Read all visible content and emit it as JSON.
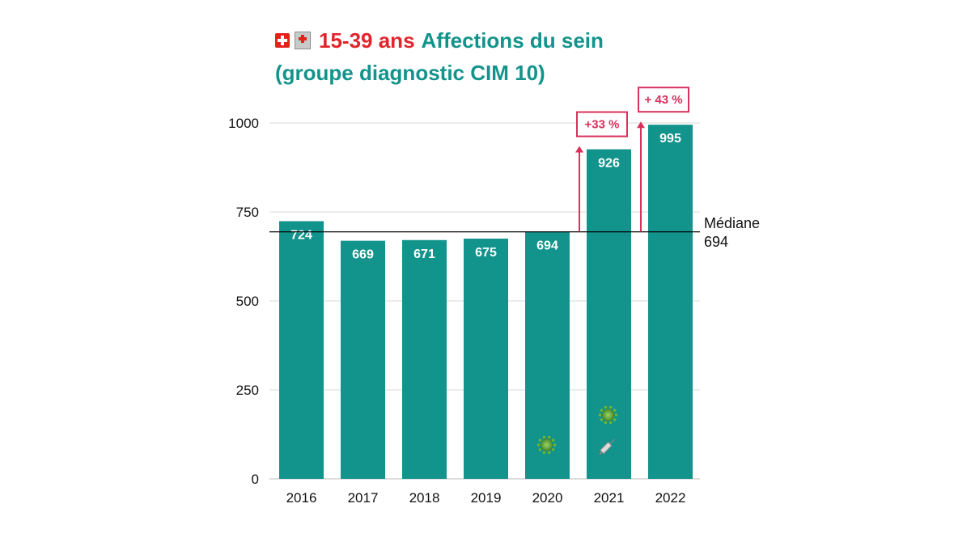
{
  "title": {
    "age_range": "15-39 ans",
    "topic": "Affections du sein",
    "subtitle": "(groupe diagnostic CIM 10)",
    "icons": [
      "swiss-flag-icon",
      "hospital-icon"
    ]
  },
  "colors": {
    "bar": "#12938b",
    "title_accent": "#e0262c",
    "callout": "#d8315b",
    "median_line": "#000000",
    "grid": "#d9d9d9"
  },
  "chart_data": {
    "type": "bar",
    "categories": [
      "2016",
      "2017",
      "2018",
      "2019",
      "2020",
      "2021",
      "2022"
    ],
    "values": [
      724,
      669,
      671,
      675,
      694,
      926,
      995
    ],
    "ylim": [
      0,
      1000
    ],
    "yticks": [
      0,
      250,
      500,
      750,
      1000
    ],
    "xlabel": "",
    "ylabel": "",
    "grid": true,
    "median": {
      "value": 694,
      "label": "Médiane",
      "value_label": "694"
    },
    "callouts": [
      {
        "category": "2021",
        "text": "+33 %"
      },
      {
        "category": "2022",
        "text": "+ 43 %"
      }
    ],
    "bar_icons": [
      {
        "category": "2020",
        "icons": [
          "virus-icon"
        ]
      },
      {
        "category": "2021",
        "icons": [
          "virus-icon",
          "syringe-icon"
        ]
      }
    ]
  }
}
